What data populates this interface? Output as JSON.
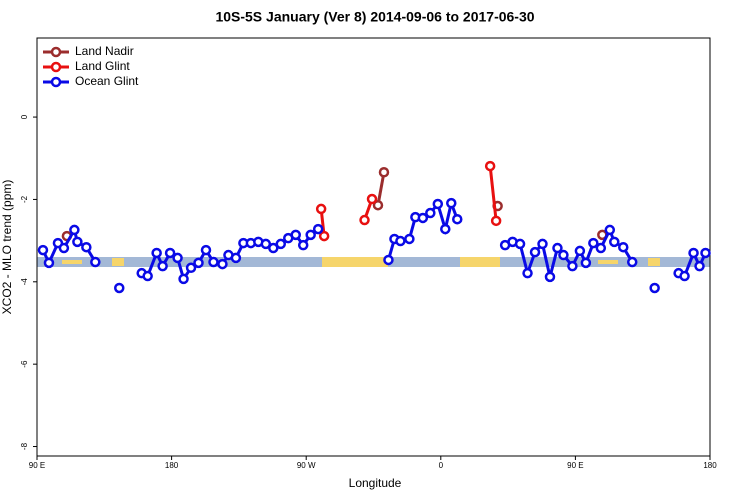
{
  "chart_data": {
    "type": "line",
    "title": "10S-5S January (Ver 8)   2014-09-06 to 2017-06-30",
    "x_label": "Longitude",
    "y_label": "XCO2 - MLO trend (ppm)",
    "xlim": [
      90,
      540
    ],
    "ylim": [
      -8.23,
      1.92
    ],
    "xticks": [
      {
        "value": 90,
        "label": "90 E"
      },
      180,
      {
        "value": 270,
        "label": "90 W"
      },
      {
        "value": 360,
        "label": "0"
      },
      {
        "value": 450,
        "label": "90 E"
      },
      {
        "value": 540,
        "label": "180"
      }
    ],
    "yticks": [
      -8,
      -6,
      -4,
      -2,
      0
    ],
    "legend": "top-left",
    "series": [
      {
        "name": "Land Nadir",
        "color": "#9b2d2d",
        "x": [
          110,
          null,
          318,
          322,
          null,
          398,
          null,
          468
        ],
        "values": [
          -2.89,
          null,
          -2.14,
          -1.34,
          null,
          -2.16,
          null,
          -2.86
        ]
      },
      {
        "name": "Land Glint",
        "color": "#e81010",
        "x": [
          280,
          282,
          null,
          309,
          314,
          null,
          393,
          397
        ],
        "values": [
          -2.23,
          -2.89,
          null,
          -2.5,
          -1.99,
          null,
          -1.19,
          -2.52
        ]
      },
      {
        "name": "Ocean Glint",
        "color": "#0a0ae6",
        "x": [
          94,
          98,
          104,
          108,
          115,
          117,
          123,
          129,
          null,
          145,
          null,
          160,
          164,
          170,
          174,
          179,
          184,
          188,
          193,
          198,
          203,
          208,
          214,
          218,
          223,
          228,
          233,
          238,
          243,
          248,
          253,
          258,
          263,
          268,
          273,
          278,
          null,
          325,
          329,
          333,
          339,
          343,
          348,
          353,
          358,
          363,
          367,
          371,
          null,
          403,
          408,
          413,
          418,
          423,
          428,
          433,
          438,
          442,
          448,
          453,
          457,
          462,
          467,
          473,
          476,
          482,
          488,
          null,
          503,
          null,
          519,
          523,
          529,
          533,
          537
        ],
        "values": [
          -3.23,
          -3.54,
          -3.06,
          -3.18,
          -2.74,
          -3.03,
          -3.16,
          -3.52,
          null,
          -4.15,
          null,
          -3.79,
          -3.86,
          -3.3,
          -3.62,
          -3.3,
          -3.42,
          -3.93,
          -3.66,
          -3.54,
          -3.23,
          -3.52,
          -3.57,
          -3.35,
          -3.42,
          -3.06,
          -3.06,
          -3.03,
          -3.08,
          -3.18,
          -3.08,
          -2.94,
          -2.86,
          -3.11,
          -2.86,
          -2.72,
          null,
          -3.47,
          -2.96,
          -3.01,
          -2.96,
          -2.43,
          -2.45,
          -2.33,
          -2.11,
          -2.72,
          -2.09,
          -2.48,
          null,
          -3.11,
          -3.03,
          -3.08,
          -3.79,
          -3.28,
          -3.08,
          -3.88,
          -3.18,
          -3.35,
          -3.62,
          -3.25,
          -3.54,
          -3.06,
          -3.18,
          -2.74,
          -3.03,
          -3.16,
          -3.52,
          null,
          -4.15,
          null,
          -3.79,
          -3.86,
          -3.3,
          -3.62,
          -3.3
        ]
      }
    ]
  }
}
